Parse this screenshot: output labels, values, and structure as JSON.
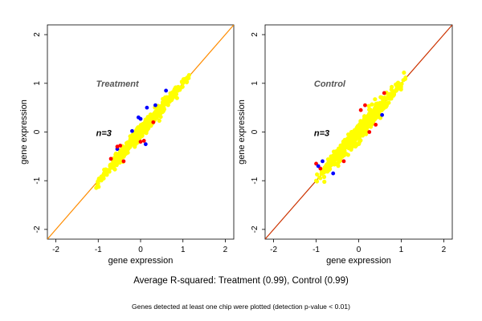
{
  "figure": {
    "caption": "Average R-squared: Treatment (0.99), Control (0.99)",
    "footnote": "Genes detected at least one chip were plotted (detection p-value < 0.01)",
    "colors": {
      "point_fill": "#ffff00",
      "point_low": "#0000ff",
      "point_high": "#ff0000",
      "diag_treatment": "#ff8c00",
      "diag_control": "#cc3300",
      "axis": "#000000",
      "label": "#555555"
    }
  },
  "chart_data": [
    {
      "type": "scatter",
      "title": "Treatment",
      "annotation": "n=3",
      "xlabel": "gene expression",
      "ylabel": "gene expression",
      "xlim": [
        -2.2,
        2.2
      ],
      "ylim": [
        -2.2,
        2.2
      ],
      "xticks": [
        -2,
        -1,
        0,
        1,
        2
      ],
      "yticks": [
        -2,
        -1,
        0,
        1,
        2
      ],
      "reference_line": {
        "slope": 1,
        "intercept": 0
      },
      "cloud": {
        "x_range": [
          -1.05,
          1.15
        ],
        "y_range": [
          -1.15,
          1.15
        ],
        "r_squared": 0.99
      },
      "series": [
        {
          "color": "yellow",
          "values": [
            [
              -1.0,
              -1.05
            ],
            [
              -0.8,
              -0.82
            ],
            [
              -0.6,
              -0.58
            ],
            [
              -0.4,
              -0.42
            ],
            [
              -0.2,
              -0.18
            ],
            [
              0.0,
              0.02
            ],
            [
              0.2,
              0.2
            ],
            [
              0.4,
              0.42
            ],
            [
              0.6,
              0.58
            ],
            [
              0.8,
              0.82
            ],
            [
              1.0,
              1.0
            ],
            [
              1.1,
              1.12
            ]
          ]
        },
        {
          "color": "blue",
          "values": [
            [
              -0.55,
              -0.35
            ],
            [
              0.0,
              0.27
            ],
            [
              0.35,
              0.55
            ],
            [
              -0.2,
              0.02
            ],
            [
              0.15,
              0.5
            ],
            [
              -0.05,
              0.3
            ],
            [
              0.6,
              0.85
            ],
            [
              0.12,
              -0.25
            ]
          ]
        },
        {
          "color": "red",
          "values": [
            [
              -0.55,
              -0.3
            ],
            [
              -0.7,
              -0.55
            ],
            [
              0.0,
              -0.2
            ],
            [
              0.3,
              0.2
            ],
            [
              -0.4,
              -0.6
            ],
            [
              0.08,
              -0.18
            ],
            [
              -0.48,
              -0.28
            ]
          ]
        }
      ]
    },
    {
      "type": "scatter",
      "title": "Control",
      "annotation": "n=3",
      "xlabel": "gene expression",
      "ylabel": "gene expression",
      "xlim": [
        -2.2,
        2.2
      ],
      "ylim": [
        -2.2,
        2.2
      ],
      "xticks": [
        -2,
        -1,
        0,
        1,
        2
      ],
      "yticks": [
        -2,
        -1,
        0,
        1,
        2
      ],
      "reference_line": {
        "slope": 1,
        "intercept": 0
      },
      "cloud": {
        "x_range": [
          -1.0,
          1.15
        ],
        "y_range": [
          -1.15,
          1.15
        ],
        "r_squared": 0.99
      },
      "series": [
        {
          "color": "yellow",
          "values": [
            [
              -0.9,
              -0.95
            ],
            [
              -0.7,
              -0.7
            ],
            [
              -0.5,
              -0.55
            ],
            [
              -0.3,
              -0.28
            ],
            [
              -0.1,
              -0.12
            ],
            [
              0.1,
              0.12
            ],
            [
              0.3,
              0.28
            ],
            [
              0.5,
              0.52
            ],
            [
              0.7,
              0.7
            ],
            [
              0.9,
              0.92
            ],
            [
              1.1,
              1.12
            ]
          ]
        },
        {
          "color": "red",
          "values": [
            [
              -1.0,
              -0.65
            ],
            [
              0.25,
              0.0
            ],
            [
              0.15,
              0.55
            ],
            [
              -0.35,
              -0.6
            ],
            [
              0.4,
              0.15
            ],
            [
              -0.9,
              -0.75
            ],
            [
              0.05,
              0.45
            ],
            [
              0.6,
              0.8
            ]
          ]
        },
        {
          "color": "blue",
          "values": [
            [
              -0.85,
              -0.6
            ],
            [
              -0.6,
              -0.85
            ],
            [
              0.55,
              0.35
            ],
            [
              -0.95,
              -0.7
            ]
          ]
        }
      ]
    }
  ]
}
